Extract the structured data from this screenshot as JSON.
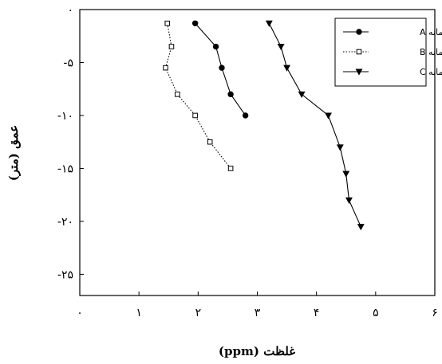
{
  "chart_data": {
    "type": "line",
    "xlabel": "غلظت (ppm)",
    "ylabel": "عمق (متر)",
    "xlim": [
      0,
      6
    ],
    "ylim": [
      -27,
      0
    ],
    "x_ticks": [
      0,
      1,
      2,
      3,
      4,
      5,
      6
    ],
    "x_tick_labels": [
      "۰",
      "۱",
      "۲",
      "۳",
      "۴",
      "۵",
      "۶"
    ],
    "y_ticks": [
      0,
      -5,
      -10,
      -15,
      -20,
      -25
    ],
    "y_tick_labels": [
      "۰",
      "-۵",
      "-۱۰",
      "-۱۵",
      "-۲۰",
      "-۲۵"
    ],
    "legend_position": "top-right",
    "series": [
      {
        "name": "گمانه A",
        "line": "solid",
        "marker": "filled-circle",
        "x": [
          1.95,
          2.3,
          2.4,
          2.55,
          2.8
        ],
        "y": [
          -1.3,
          -3.5,
          -5.5,
          -8,
          -10
        ]
      },
      {
        "name": "گمانه B",
        "line": "dotted",
        "marker": "open-square",
        "x": [
          1.48,
          1.55,
          1.45,
          1.65,
          1.95,
          2.2,
          2.55
        ],
        "y": [
          -1.3,
          -3.5,
          -5.5,
          -8,
          -10,
          -12.5,
          -15
        ]
      },
      {
        "name": "گمانه C",
        "line": "solid",
        "marker": "filled-triangle-down",
        "x": [
          3.2,
          3.4,
          3.5,
          3.75,
          4.2,
          4.4,
          4.5,
          4.55,
          4.75
        ],
        "y": [
          -1.3,
          -3.5,
          -5.5,
          -8,
          -10,
          -13,
          -15.5,
          -18,
          -20.5
        ]
      }
    ]
  }
}
